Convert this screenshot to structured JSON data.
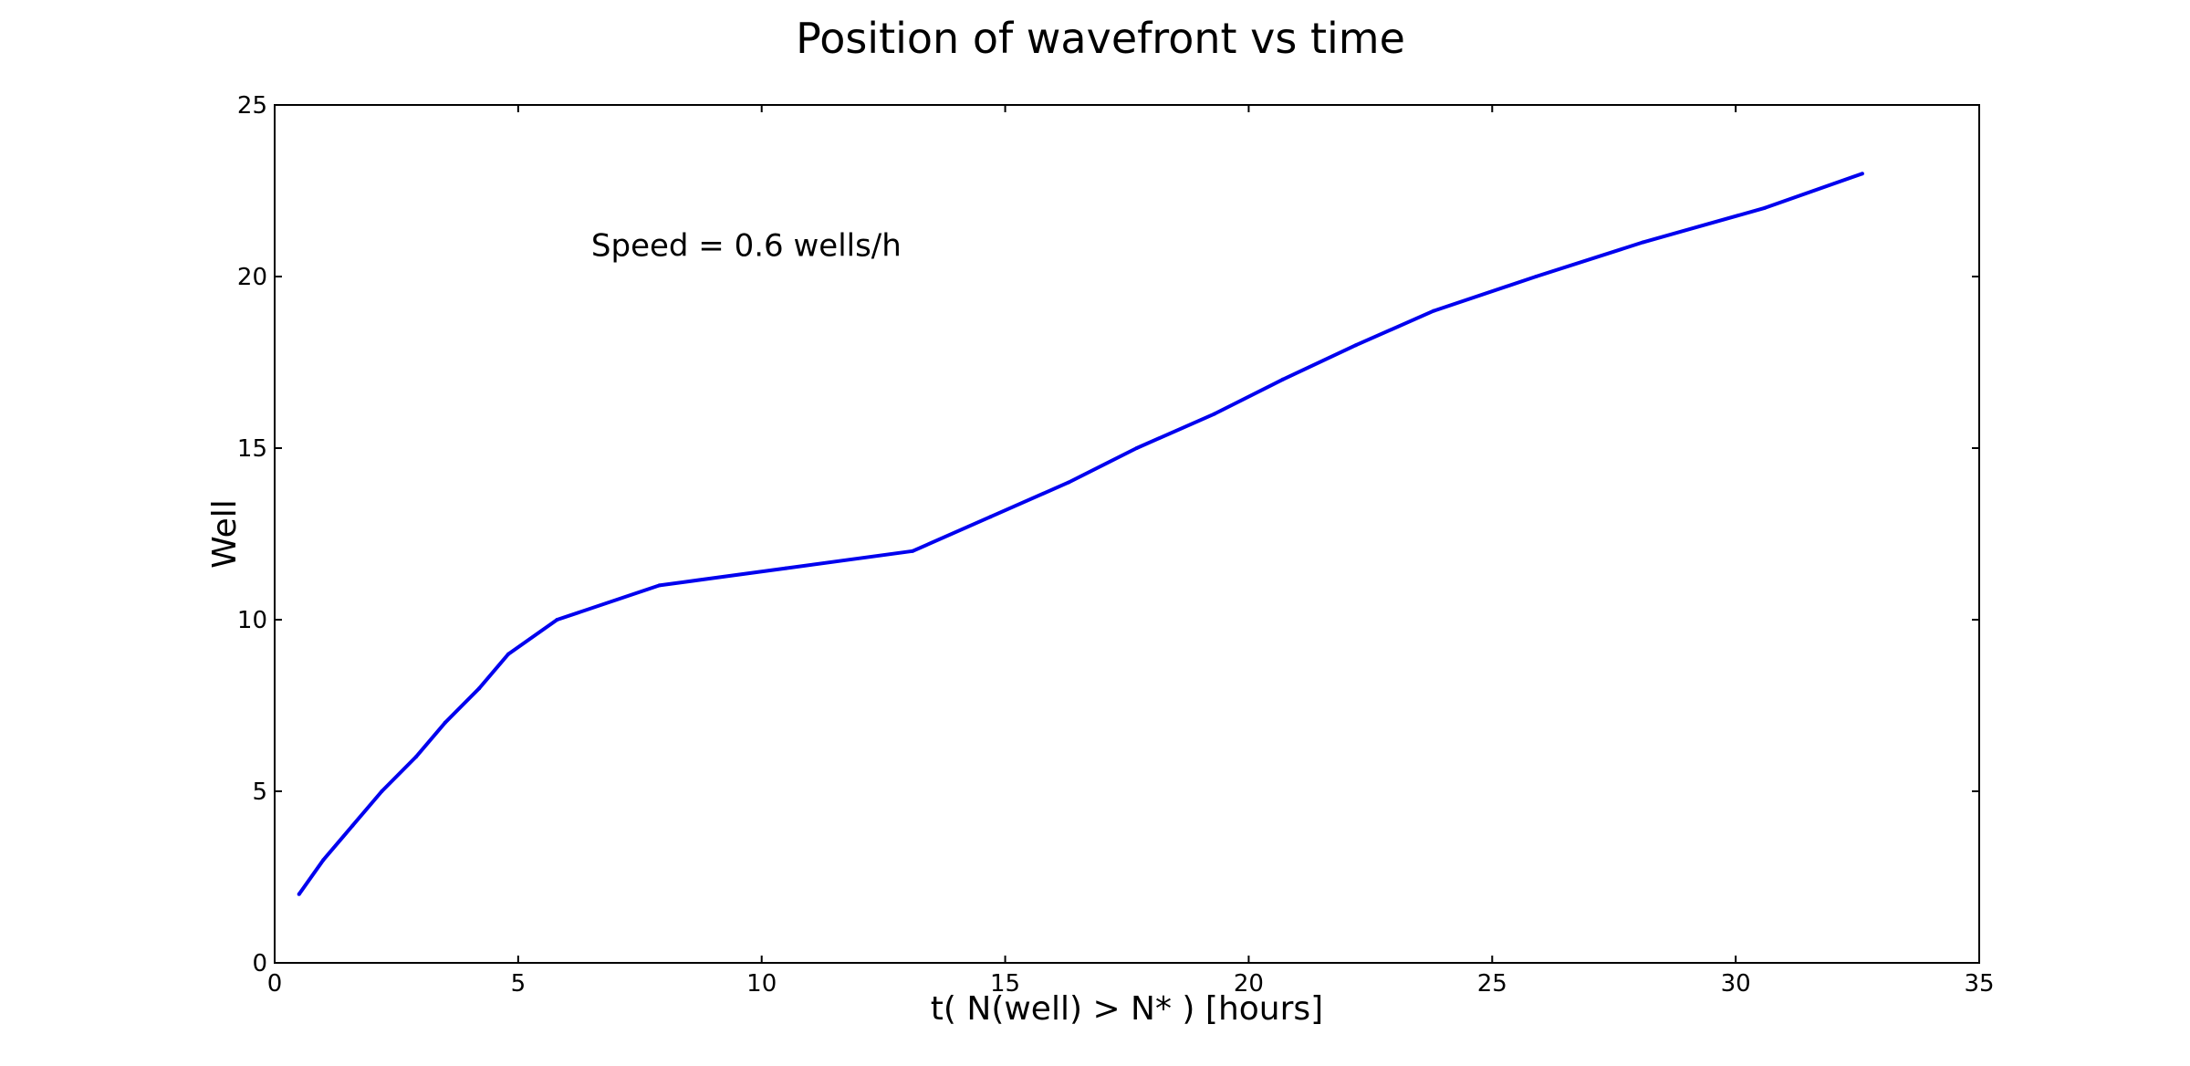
{
  "chart_data": {
    "type": "line",
    "title": "Position of wavefront vs time",
    "xlabel": "t( N(well) > N* ) [hours]",
    "ylabel": "Well",
    "xlim": [
      0,
      35
    ],
    "ylim": [
      0,
      25
    ],
    "xticks": [
      0,
      5,
      10,
      15,
      20,
      25,
      30,
      35
    ],
    "yticks": [
      0,
      5,
      10,
      15,
      20,
      25
    ],
    "grid": false,
    "annotation": {
      "text": "Speed = 0.6 wells/h",
      "x": 6.5,
      "y": 20.6
    },
    "series": [
      {
        "color": "#0000ee",
        "x": [
          0.5,
          1.0,
          1.6,
          2.2,
          2.9,
          3.5,
          4.2,
          4.8,
          5.8,
          7.9,
          10.5,
          13.1,
          14.7,
          16.3,
          17.7,
          19.3,
          20.7,
          22.2,
          23.8,
          25.9,
          28.1,
          30.6,
          32.6
        ],
        "y": [
          2,
          3,
          4,
          5,
          6,
          7,
          8,
          9,
          10,
          11,
          11.5,
          12,
          13,
          14,
          15,
          16,
          17,
          18,
          19,
          20,
          21,
          22,
          23
        ]
      }
    ]
  }
}
